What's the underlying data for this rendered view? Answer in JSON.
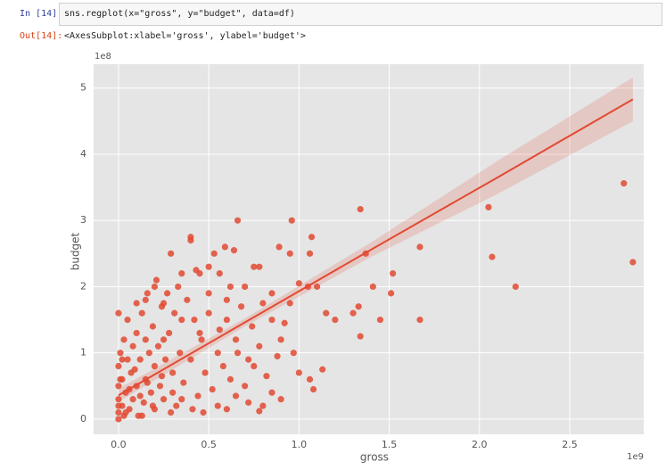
{
  "cell": {
    "in_prompt": "In [14]:",
    "code": "sns.regplot(x=\"gross\", y=\"budget\", data=df)",
    "out_prompt": "Out[14]:",
    "output": "<AxesSubplot:xlabel='gross', ylabel='budget'>"
  },
  "chart_data": {
    "type": "regplot",
    "x_label": "gross",
    "y_label": "budget",
    "x_offset": "1e9",
    "y_offset": "1e8",
    "xlim": [
      -0.138,
      2.91
    ],
    "ylim": [
      -0.23,
      5.36
    ],
    "xticks": [
      {
        "value": 0,
        "label": "0.0"
      },
      0.5,
      {
        "value": 1,
        "label": "1.0"
      },
      1.5,
      {
        "value": 2,
        "label": "2.0"
      },
      2.5
    ],
    "yticks": [
      0,
      1,
      2,
      3,
      4,
      5
    ],
    "grid": true,
    "background": "#e5e5e5",
    "color": "#e24a33",
    "points": {
      "x": [
        2.8,
        2.85,
        2.05,
        2.07,
        2.2,
        1.67,
        1.67,
        1.52,
        1.51,
        1.45,
        1.34,
        1.34,
        1.37,
        1.41,
        1.3,
        1.33,
        0.96,
        0.66,
        0.53,
        1.07,
        1.06,
        0.95,
        0.89,
        0.4,
        0.4,
        0.59,
        0.29,
        0.75,
        0.78,
        0.64,
        1.0,
        1.05,
        1.1,
        1.15,
        1.2,
        0.97,
        1.0,
        1.06,
        1.08,
        1.13,
        0.78,
        0.9,
        0.7,
        0.55,
        0.3,
        0.0,
        0.1,
        0.15,
        0.2,
        0.25,
        0.35,
        0.45,
        0.5,
        0.6,
        0.7,
        0.8,
        0.85,
        0.9,
        0.95,
        0.75,
        0.65,
        0.55,
        0.45,
        0.35,
        0.25,
        0.0,
        0.0,
        0.0,
        0.0,
        0.0,
        0.01,
        0.02,
        0.02,
        0.03,
        0.03,
        0.04,
        0.05,
        0.05,
        0.06,
        0.07,
        0.08,
        0.08,
        0.1,
        0.1,
        0.11,
        0.12,
        0.13,
        0.14,
        0.15,
        0.15,
        0.17,
        0.18,
        0.19,
        0.2,
        0.2,
        0.22,
        0.23,
        0.24,
        0.25,
        0.26,
        0.28,
        0.3,
        0.31,
        0.32,
        0.34,
        0.36,
        0.38,
        0.4,
        0.42,
        0.44,
        0.46,
        0.48,
        0.5,
        0.52,
        0.56,
        0.58,
        0.6,
        0.62,
        0.66,
        0.68,
        0.72,
        0.74,
        0.78,
        0.82,
        0.85,
        0.88,
        0.92,
        0.16,
        0.21,
        0.27,
        0.33,
        0.43,
        0.5,
        0.56,
        0.62,
        0.0,
        0.01,
        0.02,
        0.04,
        0.06,
        0.09,
        0.12,
        0.13,
        0.16,
        0.19,
        0.24,
        0.29,
        0.35,
        0.41,
        0.47,
        0.6,
        0.65,
        0.72,
        0.85,
        0.8
      ],
      "values": [
        3.56,
        2.37,
        3.2,
        2.45,
        2.0,
        2.6,
        1.5,
        2.2,
        1.9,
        1.5,
        3.17,
        1.25,
        2.5,
        2.0,
        1.6,
        1.7,
        3.0,
        3.0,
        2.5,
        2.75,
        2.5,
        2.5,
        2.6,
        2.75,
        2.7,
        2.6,
        2.5,
        2.3,
        2.3,
        2.55,
        2.05,
        2.0,
        2.0,
        1.6,
        1.5,
        1.0,
        0.7,
        0.6,
        0.45,
        0.75,
        0.12,
        0.3,
        0.5,
        0.2,
        0.4,
        1.6,
        1.75,
        1.8,
        2.0,
        1.75,
        2.2,
        2.2,
        1.9,
        1.5,
        2.0,
        1.75,
        1.5,
        1.2,
        1.75,
        0.8,
        1.2,
        1.0,
        1.3,
        1.5,
        1.2,
        0.0,
        0.1,
        0.3,
        0.5,
        0.8,
        1.0,
        0.2,
        0.6,
        1.2,
        0.05,
        0.4,
        0.9,
        1.5,
        0.15,
        0.7,
        1.1,
        0.3,
        0.5,
        1.3,
        0.05,
        0.9,
        1.6,
        0.25,
        0.6,
        1.2,
        1.0,
        0.4,
        1.4,
        0.15,
        0.8,
        1.1,
        0.5,
        1.7,
        0.3,
        0.9,
        1.3,
        0.7,
        1.6,
        0.2,
        1.0,
        0.55,
        1.8,
        0.9,
        1.5,
        0.35,
        1.2,
        0.7,
        1.6,
        0.45,
        1.35,
        0.8,
        1.8,
        0.6,
        1.0,
        1.7,
        0.9,
        1.4,
        1.1,
        0.65,
        1.9,
        0.95,
        1.45,
        1.9,
        2.1,
        1.9,
        2.0,
        2.25,
        2.3,
        2.2,
        2.0,
        0.2,
        0.6,
        0.9,
        0.1,
        0.45,
        0.75,
        0.35,
        0.05,
        0.55,
        0.2,
        0.65,
        0.1,
        0.3,
        0.15,
        0.1,
        0.15,
        0.35,
        0.25,
        0.4,
        0.2
      ]
    },
    "regression": {
      "x": [
        0,
        0.7,
        1.4,
        2.1,
        2.85
      ],
      "values": [
        0.36,
        1.46,
        2.56,
        3.65,
        4.83
      ],
      "lower": [
        0.26,
        1.4,
        2.45,
        3.4,
        4.5
      ],
      "upper": [
        0.46,
        1.52,
        2.67,
        3.9,
        5.16
      ]
    }
  }
}
